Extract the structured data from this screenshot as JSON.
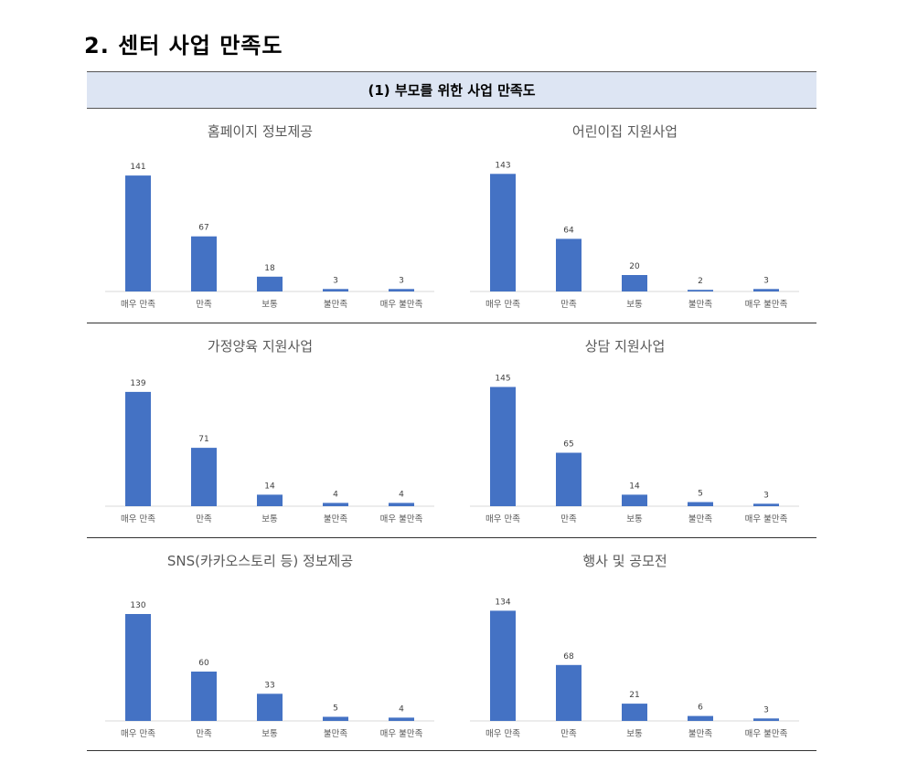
{
  "page": {
    "section_title": "2. 센터 사업 만족도",
    "subheading": "(1) 부모를 위한 사업 만족도"
  },
  "colors": {
    "bar": "#4472c4",
    "axis": "#d9d9d9",
    "header_bg": "#dde5f3"
  },
  "chart_data": [
    {
      "type": "bar",
      "title": "홈페이지 정보제공",
      "categories": [
        "매우 만족",
        "만족",
        "보통",
        "불만족",
        "매우 불만족"
      ],
      "values": [
        141,
        67,
        18,
        3,
        3
      ],
      "xlabel": "",
      "ylabel": "",
      "ylim": [
        0,
        150
      ],
      "grid": false
    },
    {
      "type": "bar",
      "title": "어린이집 지원사업",
      "categories": [
        "매우 만족",
        "만족",
        "보통",
        "불만족",
        "매우 불만족"
      ],
      "values": [
        143,
        64,
        20,
        2,
        3
      ],
      "xlabel": "",
      "ylabel": "",
      "ylim": [
        0,
        150
      ],
      "grid": false
    },
    {
      "type": "bar",
      "title": "가정양육 지원사업",
      "categories": [
        "매우 만족",
        "만족",
        "보통",
        "불만족",
        "매우 불만족"
      ],
      "values": [
        139,
        71,
        14,
        4,
        4
      ],
      "xlabel": "",
      "ylabel": "",
      "ylim": [
        0,
        150
      ],
      "grid": false
    },
    {
      "type": "bar",
      "title": "상담 지원사업",
      "categories": [
        "매우 만족",
        "만족",
        "보통",
        "불만족",
        "매우 불만족"
      ],
      "values": [
        145,
        65,
        14,
        5,
        3
      ],
      "xlabel": "",
      "ylabel": "",
      "ylim": [
        0,
        150
      ],
      "grid": false
    },
    {
      "type": "bar",
      "title": "SNS(카카오스토리 등) 정보제공",
      "categories": [
        "매우 만족",
        "만족",
        "보통",
        "불만족",
        "매우 불만족"
      ],
      "values": [
        130,
        60,
        33,
        5,
        4
      ],
      "xlabel": "",
      "ylabel": "",
      "ylim": [
        0,
        150
      ],
      "grid": false
    },
    {
      "type": "bar",
      "title": "행사 및 공모전",
      "categories": [
        "매우 만족",
        "만족",
        "보통",
        "불만족",
        "매우 불만족"
      ],
      "values": [
        134,
        68,
        21,
        6,
        3
      ],
      "xlabel": "",
      "ylabel": "",
      "ylim": [
        0,
        150
      ],
      "grid": false
    }
  ]
}
